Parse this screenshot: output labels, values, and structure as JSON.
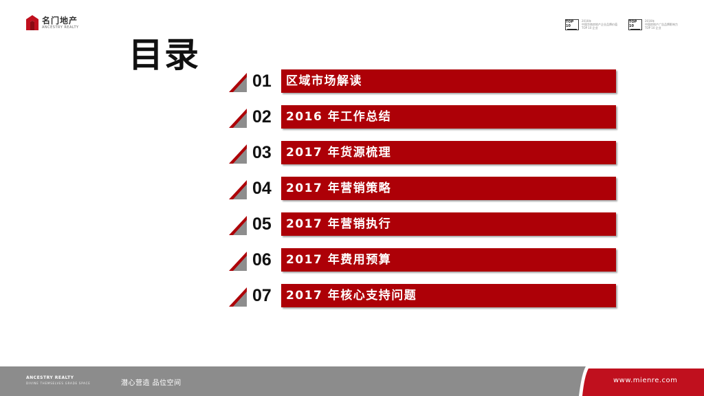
{
  "brand": {
    "name_cn": "名门地产",
    "name_en": "ANCESTRY REALTY",
    "color": "#c0101e"
  },
  "awards": [
    {
      "badge": "TOP 10",
      "lines": [
        "2016年",
        "中国华南房地产企业品牌价值",
        "TOP 10 企业"
      ]
    },
    {
      "badge": "TOP 10",
      "lines": [
        "2016年",
        "中国房地产广告品牌影响力",
        "TOP 10 企业"
      ]
    }
  ],
  "page_title": "目录",
  "toc": [
    {
      "num": "01",
      "label": "区域市场解读"
    },
    {
      "num": "02",
      "label": "2016 年工作总结"
    },
    {
      "num": "03",
      "label": "2017 年货源梳理"
    },
    {
      "num": "04",
      "label": "2017 年营销策略"
    },
    {
      "num": "05",
      "label": "2017 年营销执行"
    },
    {
      "num": "06",
      "label": "2017 年费用预算"
    },
    {
      "num": "07",
      "label": "2017 年核心支持问题"
    }
  ],
  "footer": {
    "brand_en": "ANCESTRY REALTY",
    "tagline_en": "DIVINE THEMSELVES  GRADE SPACE",
    "slogan_cn": "潜心营造  品位空间",
    "url": "www.mienre.com"
  },
  "colors": {
    "bar": "#ad0007",
    "footer_gray": "#8c8c8c",
    "footer_red": "#c0101e"
  }
}
